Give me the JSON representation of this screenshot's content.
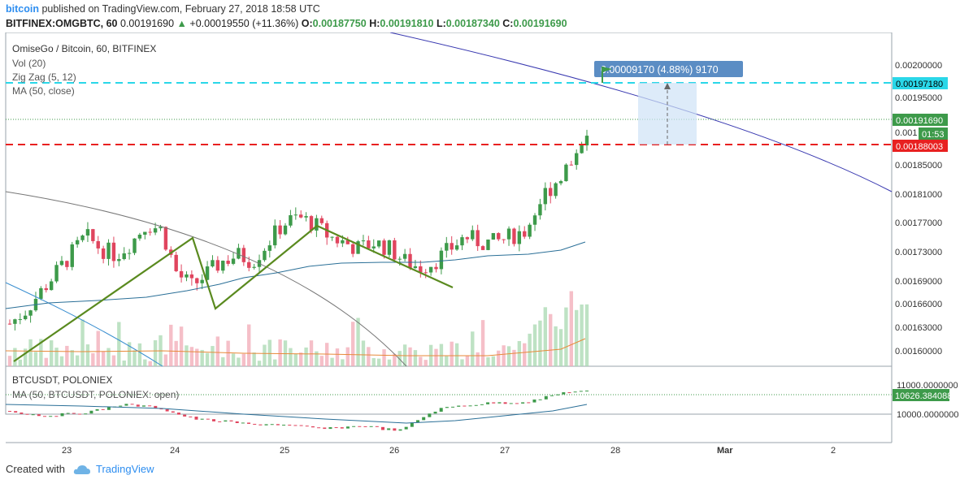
{
  "header": {
    "user": "bitcoin",
    "published": "published on TradingView.com, February 27, 2018 18:58 UTC",
    "symbol": "BITFINEX:OMGBTC, 60",
    "last": "0.00191690",
    "change": "+0.00019550 (+11.36%)",
    "o_label": "O:",
    "o": "0.00187750",
    "h_label": "H:",
    "h": "0.00191810",
    "l_label": "L:",
    "l": "0.00187340",
    "c_label": "C:",
    "c": "0.00191690"
  },
  "legend": {
    "title": "OmiseGo / Bitcoin, 60, BITFINEX",
    "vol": "Vol (20)",
    "zigzag": "Zig Zag (5, 12)",
    "ma": "MA (50, close)"
  },
  "annotation": {
    "measure_label": "0.00009170 (4.88%) 9170"
  },
  "price_axis": {
    "ticks": [
      "0.00200000",
      "0.00195000",
      "0.00185000",
      "0.00181000",
      "0.00177000",
      "0.00173000",
      "0.00169000",
      "0.00166000",
      "0.00163000",
      "0.00160000"
    ],
    "ticks_partial": "0.001",
    "label_cyan": "0.00197180",
    "label_current": "0.00191690",
    "label_timer": "01:53",
    "label_red": "0.00188003"
  },
  "lower_pane": {
    "title": "BTCUSDT, POLONIEX",
    "ma": "MA (50, BTCUSDT, POLONIEX: open)",
    "ticks": [
      "11000.0000000",
      "10000.0000000"
    ],
    "label_current": "10626.38408883"
  },
  "time_axis": {
    "labels": [
      "23",
      "24",
      "25",
      "26",
      "27",
      "28",
      "Mar",
      "2"
    ]
  },
  "footer": {
    "created": "Created with",
    "brand": "TradingView"
  },
  "colors": {
    "up": "#3d9a4a",
    "down": "#e0455e",
    "zigzag": "#5a8a1f",
    "ma": "#2a6f97",
    "cyan": "#2ad7e8",
    "red": "#e82020",
    "blue_curve": "#3838b0",
    "gray_curve": "#777777"
  },
  "chart_data": {
    "type": "candlestick",
    "x_labels": [
      "23",
      "24",
      "25",
      "26",
      "27",
      "28",
      "Mar",
      "2"
    ],
    "ylim": [
      0.00157,
      0.00204
    ],
    "levels": {
      "resistance": 0.0019718,
      "support": 0.00188003,
      "current": 0.0019169
    },
    "close_path": [
      0.0016,
      0.00162,
      0.00165,
      0.00168,
      0.00171,
      0.00174,
      0.00172,
      0.00171,
      0.00173,
      0.00176,
      0.00175,
      0.00168,
      0.00166,
      0.00168,
      0.0017,
      0.00171,
      0.0017,
      0.00173,
      0.00176,
      0.00177,
      0.00176,
      0.00174,
      0.00173,
      0.00172,
      0.00173,
      0.00172,
      0.0017,
      0.00169,
      0.0017,
      0.00172,
      0.00174,
      0.00173,
      0.00173,
      0.00174,
      0.00175,
      0.0018,
      0.00183,
      0.00186,
      0.00191
    ]
  }
}
